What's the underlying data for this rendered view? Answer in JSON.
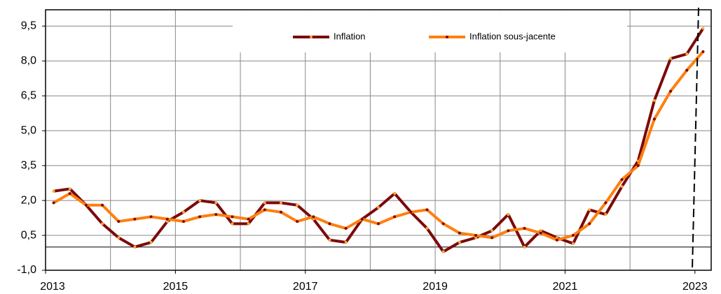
{
  "chart_data": {
    "type": "line",
    "x": [
      2013.125,
      2013.375,
      2013.625,
      2013.875,
      2014.125,
      2014.375,
      2014.625,
      2014.875,
      2015.125,
      2015.375,
      2015.625,
      2015.875,
      2016.125,
      2016.375,
      2016.625,
      2016.875,
      2017.125,
      2017.375,
      2017.625,
      2017.875,
      2018.125,
      2018.375,
      2018.625,
      2018.875,
      2019.125,
      2019.375,
      2019.625,
      2019.875,
      2020.125,
      2020.375,
      2020.625,
      2020.875,
      2021.125,
      2021.375,
      2021.625,
      2021.875,
      2022.125,
      2022.375,
      2022.625,
      2022.875,
      2023.125
    ],
    "series": [
      {
        "name": "Inflation",
        "color": "#7b0a0a",
        "marker_color": "#ffa733",
        "values": [
          2.4,
          2.5,
          1.8,
          1.0,
          0.4,
          0.0,
          0.2,
          1.1,
          1.5,
          2.0,
          1.9,
          1.0,
          1.0,
          1.9,
          1.9,
          1.8,
          1.2,
          0.3,
          0.2,
          1.2,
          1.7,
          2.3,
          1.5,
          0.8,
          -0.2,
          0.2,
          0.4,
          0.7,
          1.4,
          0.0,
          0.7,
          0.4,
          0.15,
          1.6,
          1.4,
          2.6,
          3.7,
          6.3,
          8.1,
          8.3,
          9.4
        ]
      },
      {
        "name": "Inflation sous-jacente",
        "color": "#ff7f0e",
        "marker_color": "#7b0a0a",
        "values": [
          1.9,
          2.3,
          1.8,
          1.8,
          1.1,
          1.2,
          1.3,
          1.2,
          1.1,
          1.3,
          1.4,
          1.3,
          1.2,
          1.6,
          1.5,
          1.1,
          1.3,
          1.0,
          0.8,
          1.2,
          1.0,
          1.3,
          1.5,
          1.6,
          1.0,
          0.6,
          0.5,
          0.4,
          0.7,
          0.8,
          0.6,
          0.3,
          0.5,
          1.0,
          1.9,
          2.9,
          3.5,
          5.5,
          6.7,
          7.6,
          8.4
        ]
      }
    ],
    "xlim": [
      2013,
      2023.25
    ],
    "xticks": [
      2013,
      2015,
      2017,
      2019,
      2021,
      2023
    ],
    "xgrid": [
      2014,
      2015,
      2016,
      2017,
      2018,
      2019,
      2020,
      2021,
      2022
    ],
    "ylim": [
      -1,
      10.2
    ],
    "yticks": [
      {
        "value": -1,
        "label": "-1,0"
      },
      {
        "value": 0.5,
        "label": "0,5"
      },
      {
        "value": 2,
        "label": "2,0"
      },
      {
        "value": 3.5,
        "label": "3,5"
      },
      {
        "value": 5,
        "label": "5,0"
      },
      {
        "value": 6.5,
        "label": "6,5"
      },
      {
        "value": 8,
        "label": "8,0"
      },
      {
        "value": 9.5,
        "label": "9,5"
      }
    ],
    "zero_line": 0,
    "grid": true
  }
}
